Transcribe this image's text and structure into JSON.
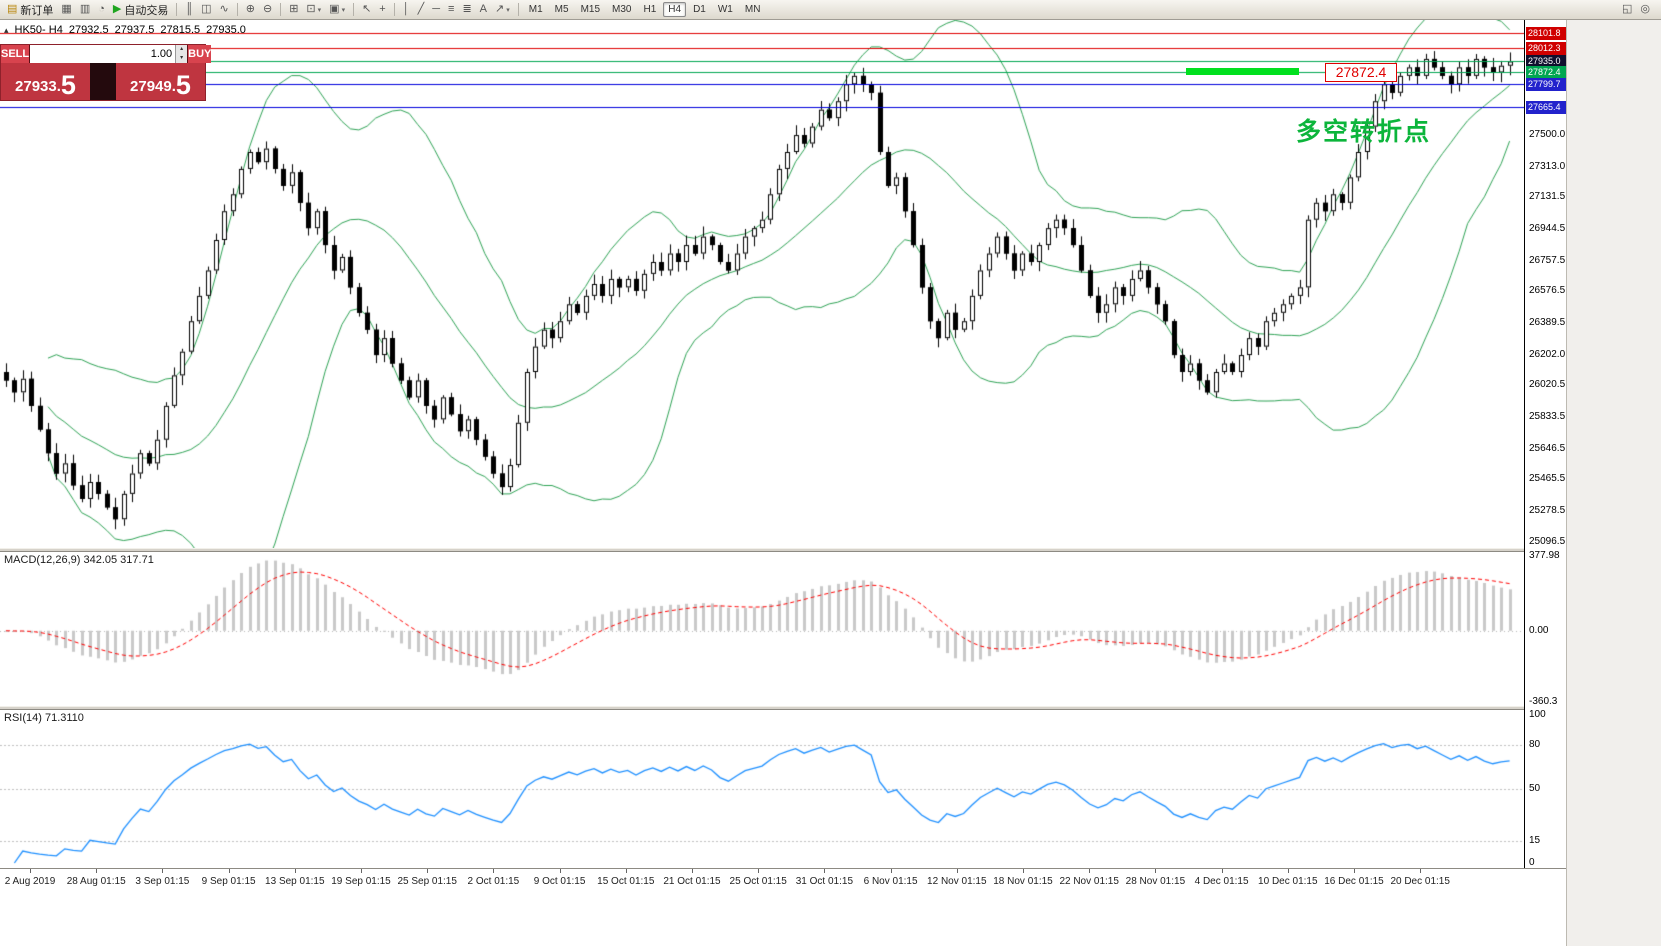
{
  "toolbar": {
    "dd_glyph": "▾",
    "items": [
      {
        "name": "new-order-button",
        "glyph": "▤",
        "glyph_color": "#b8860b",
        "label": "新订单"
      },
      {
        "name": "charts-grid-icon",
        "glyph": "▦"
      },
      {
        "name": "print-icon",
        "glyph": "▥"
      },
      {
        "name": "alerts-icon",
        "glyph": "◔"
      },
      {
        "name": "autotrading-button",
        "glyph": "▶",
        "glyph_color": "#1fa51f",
        "label": "自动交易"
      },
      {
        "sep": true
      },
      {
        "name": "bar-chart-icon",
        "glyph": "║"
      },
      {
        "name": "candlestick-chart-icon",
        "glyph": "◫"
      },
      {
        "name": "line-chart-icon",
        "glyph": "∿"
      },
      {
        "sep": true
      },
      {
        "name": "zoom-in-icon",
        "glyph": "⊕"
      },
      {
        "name": "zoom-out-icon",
        "glyph": "⊖"
      },
      {
        "sep": true
      },
      {
        "name": "tile-windows-icon",
        "glyph": "⊞"
      },
      {
        "name": "new-chart-icon",
        "glyph": "⊡",
        "dropdown": true
      },
      {
        "name": "profiles-icon",
        "glyph": "▣",
        "dropdown": true
      },
      {
        "sep": true
      },
      {
        "name": "cursor-icon",
        "glyph": "↖"
      },
      {
        "name": "crosshair-icon",
        "glyph": "+"
      },
      {
        "sep": true
      },
      {
        "name": "vertical-line-icon",
        "glyph": "│"
      },
      {
        "name": "trendline-icon",
        "glyph": "╱"
      },
      {
        "name": "horizontal-line-icon",
        "glyph": "─"
      },
      {
        "name": "equidistant-channel-icon",
        "glyph": "≡"
      },
      {
        "name": "fibonacci-icon",
        "glyph": "≣"
      },
      {
        "name": "text-label-icon",
        "glyph": "A"
      },
      {
        "name": "arrows-icon",
        "glyph": "↗",
        "dropdown": true
      },
      {
        "sep": true
      }
    ],
    "timeframes": {
      "options": [
        "M1",
        "M5",
        "M15",
        "M30",
        "H1",
        "H4",
        "D1",
        "W1",
        "MN"
      ],
      "active": "H4"
    },
    "right_icons": [
      {
        "name": "chart-shift-icon",
        "glyph": "◱"
      },
      {
        "name": "search-icon",
        "glyph": "◎"
      }
    ]
  },
  "chart": {
    "symbol": "HK50- H4",
    "ohlc": {
      "open": "27932.5",
      "high": "27937.5",
      "low": "27815.5",
      "close": "27935.0"
    }
  },
  "trade_panel": {
    "sell_label": "SELL",
    "buy_label": "BUY",
    "volume": "1.00",
    "spinner_up": "▴",
    "spinner_down": "▾",
    "sell_price": {
      "main": "27933.",
      "big": "5"
    },
    "buy_price": {
      "main": "27949.",
      "big": "5"
    }
  },
  "levels": [
    {
      "price": 28101.8,
      "label": "28101.8",
      "line": "#e00000",
      "box": "#d00000"
    },
    {
      "price": 28012.3,
      "label": "28012.3",
      "line": "#e00000",
      "box": "#d00000"
    },
    {
      "price": 27935.0,
      "label": "27935.0",
      "line": "#00a651",
      "box": "#10102e"
    },
    {
      "price": 27872.4,
      "label": "27872.4",
      "line": "#00a651",
      "box": "#00a651"
    },
    {
      "price": 27799.7,
      "label": "27799.7",
      "line": "#0000dd",
      "box": "#2222cc"
    },
    {
      "price": 27665.4,
      "label": "27665.4",
      "line": "#0000dd",
      "box": "#2222cc"
    }
  ],
  "annotations": {
    "highlight_price": 27880,
    "price_tag": "27872.4",
    "turning_point_text": "多空转折点"
  },
  "axes": {
    "price_ticks": [
      "27500.0",
      "27313.0",
      "27131.5",
      "26944.5",
      "26757.5",
      "26576.5",
      "26389.5",
      "26202.0",
      "26020.5",
      "25833.5",
      "25646.5",
      "25465.5",
      "25278.5",
      "25096.5"
    ],
    "macd_ticks": [
      "377.98",
      "0.00",
      "-360.3"
    ],
    "rsi_ticks": [
      "100",
      "80",
      "50",
      "15",
      "0"
    ],
    "rsi_levels": [
      80,
      50,
      15
    ],
    "time_labels": [
      "2 Aug 2019",
      "28 Aug 01:15",
      "3 Sep 01:15",
      "9 Sep 01:15",
      "13 Sep 01:15",
      "19 Sep 01:15",
      "25 Sep 01:15",
      "2 Oct 01:15",
      "9 Oct 01:15",
      "15 Oct 01:15",
      "21 Oct 01:15",
      "25 Oct 01:15",
      "31 Oct 01:15",
      "6 Nov 01:15",
      "12 Nov 01:15",
      "18 Nov 01:15",
      "22 Nov 01:15",
      "28 Nov 01:15",
      "4 Dec 01:15",
      "10 Dec 01:15",
      "16 Dec 01:15",
      "20 Dec 01:15"
    ]
  },
  "indicators": {
    "macd_label": "MACD(12,26,9) 342.05 317.71",
    "rsi_label": "RSI(14) 71.3110",
    "macd_params": {
      "fast": 12,
      "slow": 26,
      "signal": 9
    },
    "rsi_period": 14,
    "bollinger": {
      "period": 20,
      "mult": 1.8
    },
    "colors": {
      "bollinger": "#2ea355",
      "macd_hist": "#c9c9c9",
      "macd_signal": "#ff0000",
      "rsi": "#1e90ff",
      "up_candle": "#ffffff",
      "down_candle": "#000000"
    }
  },
  "chart_data": {
    "type": "candlestick",
    "symbol": "HK50",
    "timeframe": "H4",
    "price_range": [
      25060,
      28180
    ],
    "macd_range": [
      -360.3,
      377.98
    ],
    "rsi_range": [
      0,
      100
    ],
    "first_open": 26100,
    "closes": [
      26050,
      25980,
      26060,
      25900,
      25760,
      25620,
      25500,
      25560,
      25430,
      25350,
      25450,
      25380,
      25300,
      25230,
      25380,
      25500,
      25620,
      25560,
      25700,
      25900,
      26080,
      26220,
      26400,
      26550,
      26700,
      26880,
      27050,
      27150,
      27300,
      27400,
      27340,
      27420,
      27300,
      27200,
      27280,
      27100,
      26950,
      27050,
      26850,
      26700,
      26780,
      26600,
      26450,
      26350,
      26200,
      26300,
      26150,
      26050,
      25950,
      26050,
      25900,
      25820,
      25950,
      25850,
      25750,
      25820,
      25700,
      25600,
      25500,
      25420,
      25550,
      25800,
      26100,
      26250,
      26350,
      26300,
      26400,
      26500,
      26450,
      26550,
      26620,
      26550,
      26650,
      26600,
      26650,
      26580,
      26680,
      26750,
      26700,
      26800,
      26750,
      26850,
      26800,
      26900,
      26850,
      26750,
      26700,
      26800,
      26900,
      26950,
      27000,
      27150,
      27300,
      27400,
      27500,
      27450,
      27550,
      27650,
      27600,
      27700,
      27800,
      27850,
      27800,
      27750,
      27400,
      27200,
      27250,
      27050,
      26850,
      26600,
      26400,
      26300,
      26450,
      26350,
      26400,
      26550,
      26700,
      26800,
      26900,
      26800,
      26700,
      26800,
      26750,
      26850,
      26950,
      27000,
      26950,
      26850,
      26700,
      26550,
      26450,
      26500,
      26600,
      26550,
      26650,
      26700,
      26600,
      26500,
      26400,
      26200,
      26100,
      26150,
      26050,
      25980,
      26100,
      26150,
      26100,
      26200,
      26300,
      26250,
      26400,
      26450,
      26500,
      26550,
      26600,
      27000,
      27100,
      27050,
      27150,
      27100,
      27250,
      27400,
      27550,
      27700,
      27800,
      27750,
      27850,
      27900,
      27850,
      27950,
      27900,
      27850,
      27800,
      27900,
      27850,
      27950,
      27900,
      27870,
      27910,
      27935
    ]
  }
}
